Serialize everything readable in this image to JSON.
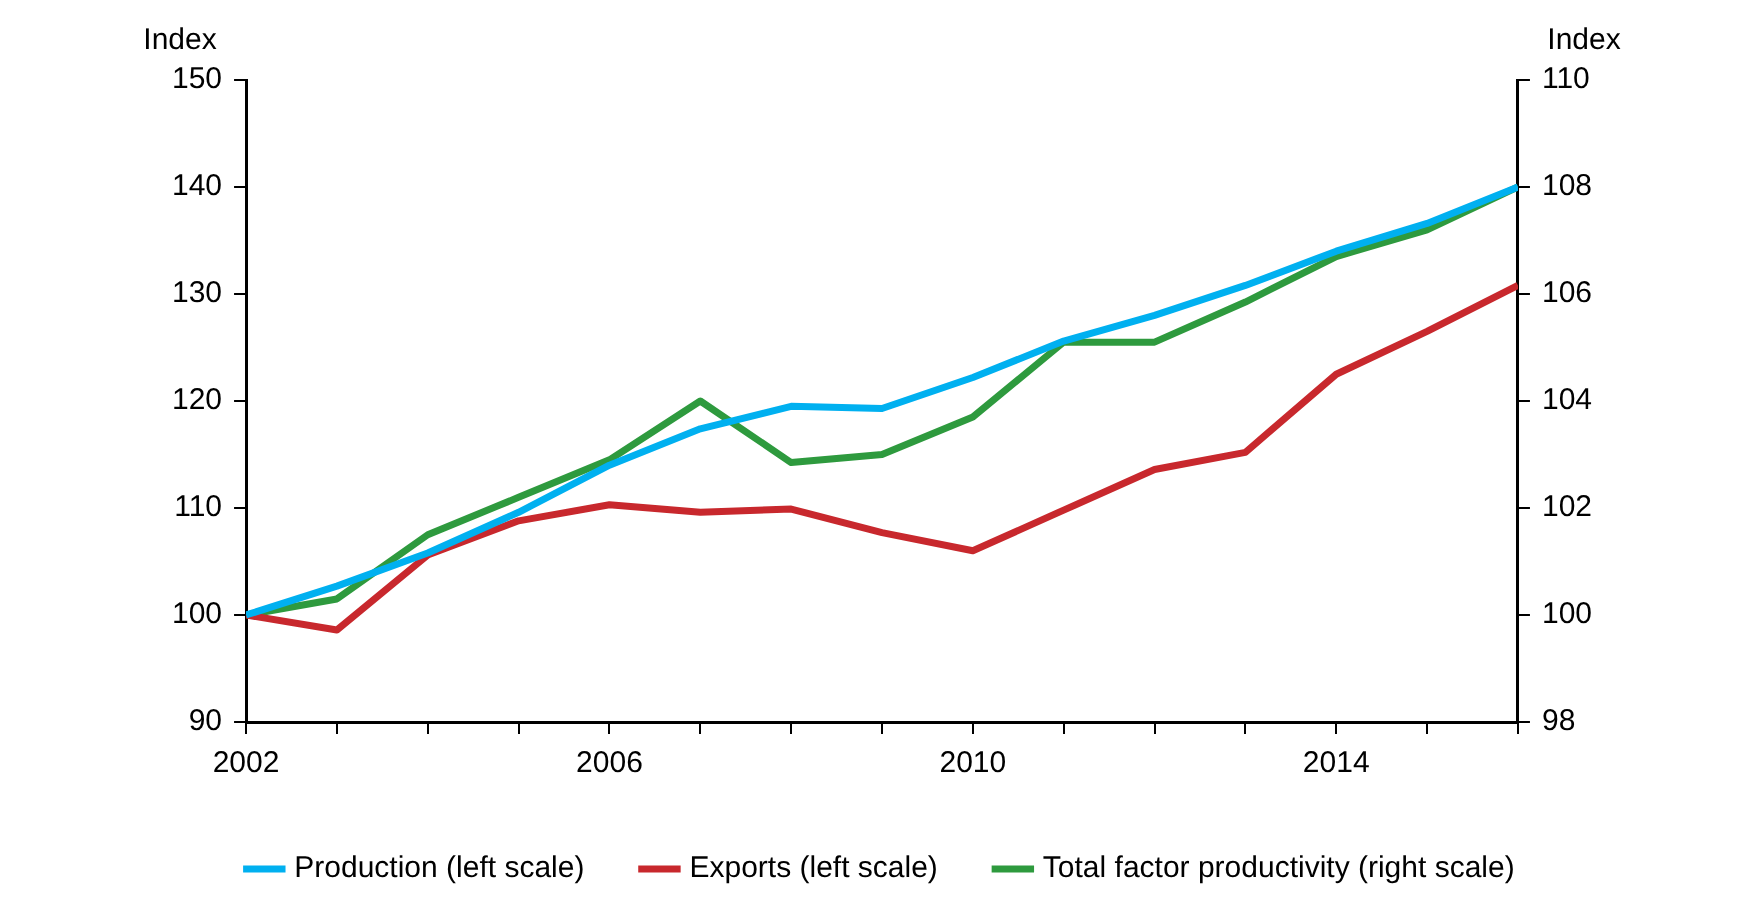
{
  "chart_data": {
    "type": "line",
    "ylabel": "Index",
    "y2label": "Index",
    "x": [
      2002,
      2003,
      2004,
      2005,
      2006,
      2007,
      2008,
      2009,
      2010,
      2011,
      2012,
      2013,
      2014,
      2015,
      2016
    ],
    "series": [
      {
        "name": "Production (left scale)",
        "color": "#00b0f0",
        "values": [
          100,
          102.7,
          105.8,
          109.6,
          114,
          117.4,
          119.5,
          119.3,
          122.2,
          125.6,
          128,
          130.8,
          134,
          136.6,
          140
        ]
      },
      {
        "name": "Exports (left scale)",
        "color": "#c8282d",
        "values": [
          100,
          98.6,
          105.6,
          108.8,
          110.3,
          109.6,
          109.9,
          107.7,
          106,
          109.8,
          113.6,
          115.2,
          122.5,
          126.5,
          130.8
        ]
      },
      {
        "name": "Total factor productivity (right scale)",
        "color": "#2e9a3e",
        "axis": "y2",
        "values": [
          100,
          100.3,
          101.5,
          102.2,
          102.9,
          104,
          102.85,
          103,
          103.7,
          105.1,
          105.1,
          105.85,
          106.7,
          107.2,
          108
        ]
      }
    ],
    "xlim": [
      2002,
      2016
    ],
    "xticks": [
      2002,
      {
        "value": 2003,
        "label": null
      },
      {
        "value": 2004,
        "label": null
      },
      {
        "value": 2005,
        "label": null
      },
      2006,
      {
        "value": 2007,
        "label": null
      },
      {
        "value": 2008,
        "label": null
      },
      {
        "value": 2009,
        "label": null
      },
      2010,
      {
        "value": 2011,
        "label": null
      },
      {
        "value": 2012,
        "label": null
      },
      {
        "value": 2013,
        "label": null
      },
      2014,
      {
        "value": 2015,
        "label": null
      },
      {
        "value": 2016,
        "label": null
      }
    ],
    "ylim": [
      90,
      150
    ],
    "yticks": [
      90,
      100,
      110,
      120,
      130,
      140,
      150
    ],
    "y2lim": [
      98,
      110
    ],
    "y2ticks": [
      98,
      100,
      102,
      104,
      106,
      108,
      110
    ],
    "grid": false,
    "legend": "bottom",
    "marker": "none",
    "line_style": "solid"
  }
}
